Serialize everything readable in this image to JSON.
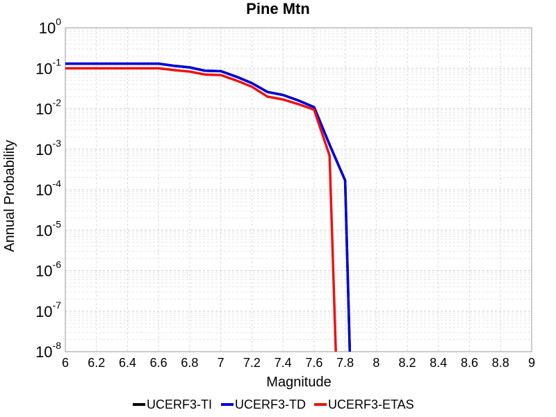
{
  "chart_data": {
    "type": "line",
    "title": "Pine Mtn",
    "xlabel": "Magnitude",
    "ylabel": "Annual Probability",
    "xlim": [
      6,
      9
    ],
    "ylim": [
      1e-08,
      1
    ],
    "yscale": "log",
    "grid": true,
    "legend_position": "bottom",
    "x_ticks": [
      "6",
      "6.2",
      "6.4",
      "6.6",
      "6.8",
      "7",
      "7.2",
      "7.4",
      "7.6",
      "7.8",
      "8",
      "8.2",
      "8.4",
      "8.6",
      "8.8",
      "9"
    ],
    "y_ticks": [
      {
        "base": "10",
        "exp": "0"
      },
      {
        "base": "10",
        "exp": "-1"
      },
      {
        "base": "10",
        "exp": "-2"
      },
      {
        "base": "10",
        "exp": "-3"
      },
      {
        "base": "10",
        "exp": "-4"
      },
      {
        "base": "10",
        "exp": "-5"
      },
      {
        "base": "10",
        "exp": "-6"
      },
      {
        "base": "10",
        "exp": "-7"
      },
      {
        "base": "10",
        "exp": "-8"
      }
    ],
    "series": [
      {
        "name": "UCERF3-TI",
        "color": "#000000",
        "x": [
          6.0,
          6.1,
          6.2,
          6.3,
          6.4,
          6.5,
          6.6,
          6.7,
          6.8,
          6.9,
          7.0,
          7.1,
          7.2,
          7.3,
          7.4,
          7.5,
          7.6,
          7.7,
          7.8,
          7.83
        ],
        "y": [
          0.13,
          0.13,
          0.13,
          0.13,
          0.13,
          0.13,
          0.13,
          0.115,
          0.105,
          0.087,
          0.085,
          0.062,
          0.043,
          0.026,
          0.022,
          0.016,
          0.011,
          0.0013,
          0.00017,
          1e-08
        ]
      },
      {
        "name": "UCERF3-TD",
        "color": "#0000dd",
        "x": [
          6.0,
          6.1,
          6.2,
          6.3,
          6.4,
          6.5,
          6.6,
          6.7,
          6.8,
          6.9,
          7.0,
          7.1,
          7.2,
          7.3,
          7.4,
          7.5,
          7.6,
          7.7,
          7.8,
          7.83
        ],
        "y": [
          0.13,
          0.13,
          0.13,
          0.13,
          0.13,
          0.13,
          0.13,
          0.115,
          0.105,
          0.087,
          0.085,
          0.062,
          0.043,
          0.026,
          0.022,
          0.016,
          0.011,
          0.0013,
          0.00017,
          1e-08
        ]
      },
      {
        "name": "UCERF3-ETAS",
        "color": "#ee1111",
        "x": [
          6.0,
          6.1,
          6.2,
          6.3,
          6.4,
          6.5,
          6.6,
          6.7,
          6.8,
          6.9,
          7.0,
          7.1,
          7.2,
          7.3,
          7.4,
          7.5,
          7.6,
          7.7,
          7.74
        ],
        "y": [
          0.1,
          0.1,
          0.1,
          0.1,
          0.1,
          0.1,
          0.1,
          0.09,
          0.083,
          0.07,
          0.068,
          0.05,
          0.035,
          0.02,
          0.017,
          0.013,
          0.0095,
          0.0007,
          1e-08
        ]
      }
    ]
  }
}
